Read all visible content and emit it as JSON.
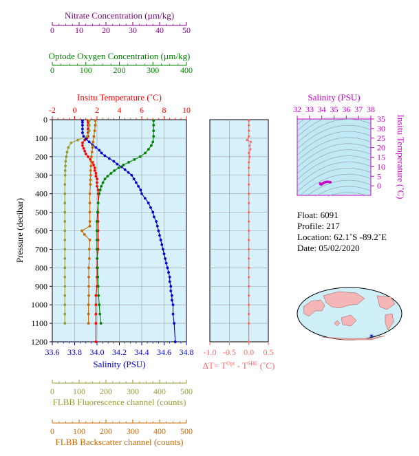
{
  "chart_data": [
    {
      "type": "line",
      "ylabel": "Pressure (decibar)",
      "ylim": [
        0,
        1200
      ],
      "y_ticks": [
        0,
        100,
        200,
        300,
        400,
        500,
        600,
        700,
        800,
        900,
        1000,
        1100,
        1200
      ],
      "axes": {
        "temperature": {
          "label": "Insitu Temperature (˚C)",
          "lim": [
            -2,
            10
          ],
          "ticks": [
            -2,
            0,
            2,
            4,
            6,
            8,
            10
          ],
          "color": "#ff0000"
        },
        "salinity": {
          "label": "Salinity (PSU)",
          "lim": [
            33.6,
            34.8
          ],
          "ticks": [
            33.6,
            33.8,
            34.0,
            34.2,
            34.4,
            34.6,
            34.8
          ],
          "tick_labels": [
            "33.6",
            "33.8",
            "34.0",
            "34.2",
            "34.4",
            "34.6",
            "34.8"
          ],
          "color": "#0000cc"
        },
        "oxygen": {
          "label": "Optode Oxygen Concentration (µm/kg)",
          "lim": [
            0,
            400
          ],
          "ticks": [
            0,
            100,
            200,
            300,
            400
          ],
          "color": "#008000"
        },
        "nitrate": {
          "label": "Nitrate Concentration (µm/kg)",
          "lim": [
            0,
            50
          ],
          "ticks": [
            0,
            10,
            20,
            30,
            40,
            50
          ],
          "color": "#800080"
        },
        "fluorescence": {
          "label": "FLBB Fluorescence channel (counts)",
          "lim": [
            0,
            500
          ],
          "ticks": [
            0,
            100,
            200,
            300,
            400,
            500
          ],
          "color": "#999933"
        },
        "backscatter": {
          "label": "FLBB Backscatter channel (counts)",
          "lim": [
            0,
            500
          ],
          "ticks": [
            0,
            100,
            200,
            300,
            400,
            500
          ],
          "color": "#cc6600"
        }
      },
      "series": [
        {
          "axis": "temperature",
          "points": [
            [
              1.2,
              5
            ],
            [
              1.2,
              15
            ],
            [
              1.2,
              30
            ],
            [
              1.2,
              50
            ],
            [
              1.2,
              70
            ],
            [
              1.2,
              90
            ],
            [
              1.1,
              100
            ],
            [
              0.9,
              110
            ],
            [
              0.7,
              125
            ],
            [
              0.7,
              140
            ],
            [
              0.8,
              155
            ],
            [
              0.9,
              170
            ],
            [
              1.0,
              185
            ],
            [
              1.2,
              200
            ],
            [
              1.4,
              215
            ],
            [
              1.6,
              230
            ],
            [
              1.7,
              245
            ],
            [
              1.8,
              260
            ],
            [
              1.8,
              275
            ],
            [
              1.9,
              290
            ],
            [
              1.9,
              305
            ],
            [
              2.0,
              320
            ],
            [
              2.0,
              340
            ],
            [
              2.0,
              360
            ],
            [
              2.1,
              380
            ],
            [
              2.1,
              400
            ],
            [
              2.1,
              450
            ],
            [
              2.1,
              500
            ],
            [
              2.1,
              550
            ],
            [
              2.1,
              600
            ],
            [
              2.1,
              650
            ],
            [
              2.1,
              700
            ],
            [
              2.0,
              750
            ],
            [
              2.0,
              800
            ],
            [
              2.0,
              850
            ],
            [
              2.0,
              900
            ],
            [
              1.9,
              950
            ],
            [
              1.9,
              1000
            ],
            [
              1.9,
              1050
            ],
            [
              1.9,
              1100
            ],
            [
              1.9,
              1200
            ]
          ]
        },
        {
          "axis": "salinity",
          "points": [
            [
              33.87,
              5
            ],
            [
              33.87,
              15
            ],
            [
              33.87,
              30
            ],
            [
              33.87,
              50
            ],
            [
              33.87,
              70
            ],
            [
              33.88,
              90
            ],
            [
              33.9,
              105
            ],
            [
              33.93,
              120
            ],
            [
              33.96,
              135
            ],
            [
              33.99,
              150
            ],
            [
              34.02,
              165
            ],
            [
              34.04,
              180
            ],
            [
              34.07,
              195
            ],
            [
              34.11,
              210
            ],
            [
              34.15,
              225
            ],
            [
              34.18,
              240
            ],
            [
              34.22,
              255
            ],
            [
              34.25,
              270
            ],
            [
              34.28,
              285
            ],
            [
              34.31,
              300
            ],
            [
              34.33,
              320
            ],
            [
              34.35,
              340
            ],
            [
              34.37,
              360
            ],
            [
              34.39,
              380
            ],
            [
              34.4,
              400
            ],
            [
              34.43,
              425
            ],
            [
              34.46,
              450
            ],
            [
              34.48,
              475
            ],
            [
              34.5,
              500
            ],
            [
              34.51,
              525
            ],
            [
              34.53,
              550
            ],
            [
              34.54,
              575
            ],
            [
              34.55,
              600
            ],
            [
              34.56,
              625
            ],
            [
              34.57,
              650
            ],
            [
              34.58,
              675
            ],
            [
              34.59,
              700
            ],
            [
              34.6,
              725
            ],
            [
              34.61,
              750
            ],
            [
              34.62,
              775
            ],
            [
              34.63,
              800
            ],
            [
              34.64,
              825
            ],
            [
              34.65,
              850
            ],
            [
              34.65,
              875
            ],
            [
              34.66,
              900
            ],
            [
              34.66,
              925
            ],
            [
              34.67,
              950
            ],
            [
              34.67,
              975
            ],
            [
              34.68,
              1000
            ],
            [
              34.68,
              1050
            ],
            [
              34.69,
              1100
            ],
            [
              34.7,
              1200
            ]
          ]
        },
        {
          "axis": "oxygen",
          "points": [
            [
              302,
              5
            ],
            [
              302,
              30
            ],
            [
              302,
              60
            ],
            [
              302,
              90
            ],
            [
              300,
              120
            ],
            [
              295,
              140
            ],
            [
              287,
              160
            ],
            [
              277,
              180
            ],
            [
              262,
              200
            ],
            [
              245,
              215
            ],
            [
              228,
              230
            ],
            [
              212,
              245
            ],
            [
              198,
              260
            ],
            [
              185,
              275
            ],
            [
              175,
              290
            ],
            [
              165,
              305
            ],
            [
              157,
              320
            ],
            [
              151,
              340
            ],
            [
              146,
              360
            ],
            [
              143,
              380
            ],
            [
              140,
              400
            ],
            [
              137,
              450
            ],
            [
              135,
              500
            ],
            [
              133,
              550
            ],
            [
              133,
              600
            ],
            [
              133,
              650
            ],
            [
              133,
              700
            ],
            [
              134,
              750
            ],
            [
              135,
              800
            ],
            [
              136,
              850
            ],
            [
              137,
              900
            ],
            [
              138,
              950
            ],
            [
              140,
              1000
            ],
            [
              142,
              1050
            ],
            [
              145,
              1100
            ]
          ]
        },
        {
          "axis": "fluorescence",
          "points": [
            [
              138,
              5
            ],
            [
              138,
              30
            ],
            [
              138,
              60
            ],
            [
              130,
              90
            ],
            [
              95,
              110
            ],
            [
              70,
              125
            ],
            [
              60,
              150
            ],
            [
              55,
              175
            ],
            [
              52,
              200
            ],
            [
              50,
              225
            ],
            [
              49,
              250
            ],
            [
              48,
              275
            ],
            [
              48,
              300
            ],
            [
              47,
              350
            ],
            [
              47,
              400
            ],
            [
              47,
              450
            ],
            [
              47,
              500
            ],
            [
              47,
              550
            ],
            [
              47,
              600
            ],
            [
              47,
              650
            ],
            [
              47,
              700
            ],
            [
              47,
              750
            ],
            [
              47,
              800
            ],
            [
              47,
              850
            ],
            [
              47,
              900
            ],
            [
              47,
              950
            ],
            [
              47,
              1000
            ],
            [
              47,
              1050
            ],
            [
              47,
              1100
            ]
          ]
        },
        {
          "axis": "backscatter",
          "points": [
            [
              160,
              5
            ],
            [
              160,
              30
            ],
            [
              158,
              60
            ],
            [
              155,
              90
            ],
            [
              152,
              120
            ],
            [
              150,
              150
            ],
            [
              148,
              175
            ],
            [
              146,
              200
            ],
            [
              145,
              225
            ],
            [
              144,
              250
            ],
            [
              143,
              275
            ],
            [
              143,
              300
            ],
            [
              142,
              325
            ],
            [
              142,
              350
            ],
            [
              140,
              400
            ],
            [
              140,
              450
            ],
            [
              140,
              500
            ],
            [
              140,
              550
            ],
            [
              140,
              575
            ],
            [
              110,
              600
            ],
            [
              120,
              620
            ],
            [
              140,
              650
            ],
            [
              138,
              700
            ],
            [
              138,
              750
            ],
            [
              136,
              800
            ],
            [
              136,
              850
            ],
            [
              136,
              900
            ],
            [
              136,
              950
            ],
            [
              135,
              1000
            ],
            [
              135,
              1050
            ],
            [
              135,
              1100
            ]
          ]
        }
      ]
    },
    {
      "type": "line",
      "xlabel": "ΔT= T^Opt - T^SBE (˚C)",
      "xlim": [
        -1.0,
        0.5
      ],
      "x_ticks": [
        -1.0,
        -0.5,
        0.0,
        0.5
      ],
      "x_tick_labels": [
        "-1.0",
        "-0.5",
        "0.0",
        "0.5"
      ],
      "ylim": [
        0,
        1200
      ],
      "color": "#ff6666",
      "points": [
        [
          0.0,
          5
        ],
        [
          0.0,
          30
        ],
        [
          0.0,
          60
        ],
        [
          0.0,
          90
        ],
        [
          -0.05,
          110
        ],
        [
          0.05,
          120
        ],
        [
          0.02,
          140
        ],
        [
          0.04,
          160
        ],
        [
          0.0,
          180
        ],
        [
          0.02,
          200
        ],
        [
          0.0,
          230
        ],
        [
          0.0,
          260
        ],
        [
          0.0,
          300
        ],
        [
          0.0,
          350
        ],
        [
          0.0,
          400
        ],
        [
          0.0,
          450
        ],
        [
          0.0,
          500
        ],
        [
          0.0,
          550
        ],
        [
          0.0,
          600
        ],
        [
          0.0,
          650
        ],
        [
          0.0,
          700
        ],
        [
          0.0,
          750
        ],
        [
          0.0,
          800
        ],
        [
          0.0,
          850
        ],
        [
          0.0,
          900
        ],
        [
          0.0,
          950
        ],
        [
          0.0,
          1000
        ],
        [
          0.0,
          1050
        ],
        [
          0.0,
          1100
        ],
        [
          0.0,
          1200
        ]
      ]
    },
    {
      "type": "scatter",
      "xlabel": "Salinity (PSU)",
      "ylabel": "Insitu Temperature (˚C)",
      "xlim": [
        32,
        38
      ],
      "ylim": [
        -5,
        35
      ],
      "x_ticks": [
        32,
        33,
        34,
        35,
        36,
        37,
        38
      ],
      "y_ticks": [
        0,
        5,
        10,
        15,
        20,
        25,
        30,
        35
      ],
      "color": "#cc00cc",
      "points": [
        [
          33.87,
          1.2
        ],
        [
          33.9,
          0.8
        ],
        [
          33.96,
          0.7
        ],
        [
          34.02,
          0.9
        ],
        [
          34.07,
          1.2
        ],
        [
          34.15,
          1.5
        ],
        [
          34.22,
          1.8
        ],
        [
          34.28,
          1.9
        ],
        [
          34.35,
          2.0
        ],
        [
          34.4,
          2.1
        ],
        [
          34.5,
          2.1
        ],
        [
          34.6,
          2.0
        ],
        [
          34.68,
          1.9
        ],
        [
          34.7,
          1.9
        ]
      ]
    }
  ],
  "info": {
    "float": "Float:  6091",
    "profile": "Profile:  217",
    "location": "Location:  62.1˚S  -89.2˚E",
    "date": "Date:  05/02/2020"
  }
}
